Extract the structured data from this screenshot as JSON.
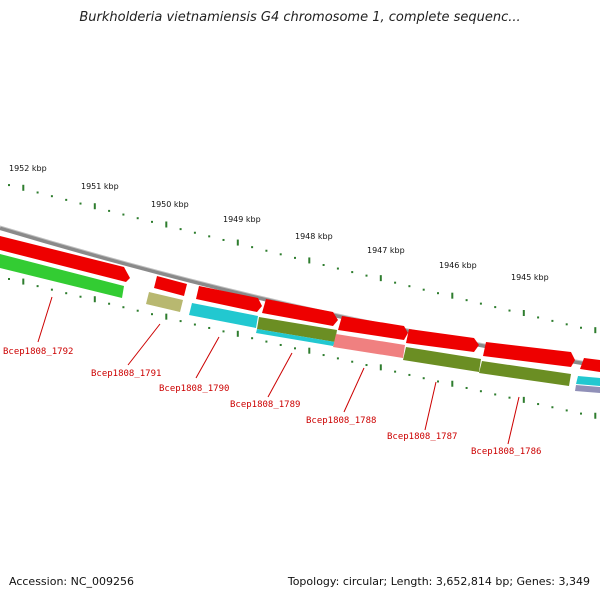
{
  "title": "Burkholderia vietnamiensis G4 chromosome 1, complete sequenc...",
  "accession": "Accession: NC_009256",
  "topology": "Topology: circular; Length: 3,652,814 bp; Genes: 3,349",
  "kbp_labels": [
    "1952 kbp",
    "1951 kbp",
    "1950 kbp",
    "1949 kbp",
    "1948 kbp",
    "1947 kbp",
    "1946 kbp",
    "1945 kbp"
  ],
  "gene_labels": [
    "Bcep1808_1792",
    "Bcep1808_1791",
    "Bcep1808_1790",
    "Bcep1808_1789",
    "Bcep1808_1788",
    "Bcep1808_1787",
    "Bcep1808_1786"
  ],
  "colors": {
    "cds": "#ee0000",
    "green": "#33cc33",
    "olive": "#b8b870",
    "cyan": "#22c8d0",
    "darkolive": "#6b8e23",
    "pink": "#f08080",
    "backbone": "#8a8a8a",
    "label": "#cc0000"
  }
}
